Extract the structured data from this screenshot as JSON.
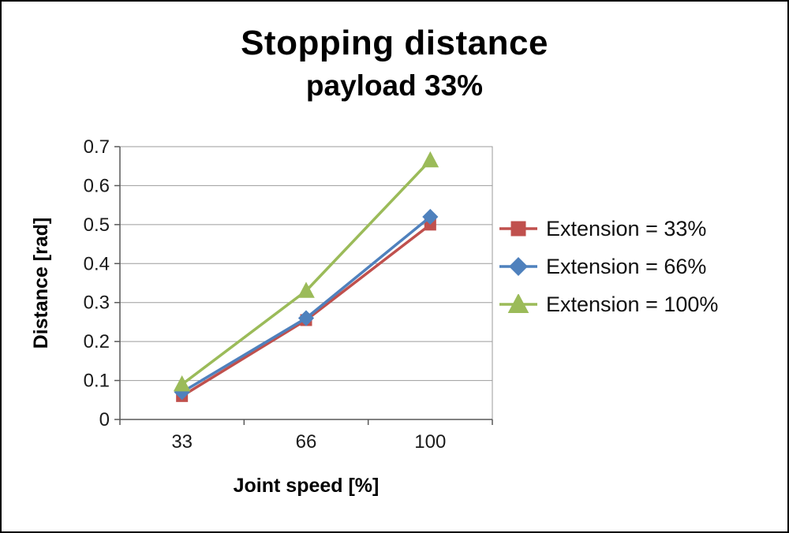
{
  "chart_data": {
    "type": "line",
    "title": "Stopping distance",
    "subtitle": "payload 33%",
    "xlabel": "Joint speed [%]",
    "ylabel": "Distance [rad]",
    "categories": [
      "33",
      "66",
      "100"
    ],
    "series": [
      {
        "name": "Extension = 33%",
        "marker": "square",
        "color": "#C0504D",
        "values": [
          0.06,
          0.255,
          0.5
        ]
      },
      {
        "name": "Extension = 66%",
        "marker": "diamond",
        "color": "#4F81BD",
        "values": [
          0.07,
          0.26,
          0.52
        ]
      },
      {
        "name": "Extension = 100%",
        "marker": "triangle",
        "color": "#9BBB59",
        "values": [
          0.09,
          0.33,
          0.665
        ]
      }
    ],
    "ylim": [
      0,
      0.7
    ],
    "ytick_step": 0.1,
    "ytick_labels": [
      "0",
      "0.1",
      "0.2",
      "0.3",
      "0.4",
      "0.5",
      "0.6",
      "0.7"
    ],
    "grid": true,
    "legend_position": "right",
    "grid_color": "#9b9b9b",
    "axis_color": "#595959"
  }
}
